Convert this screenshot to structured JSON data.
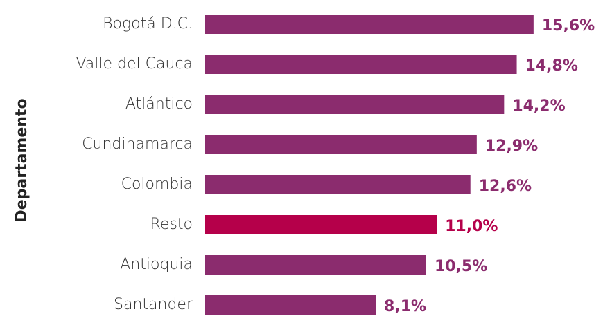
{
  "chart_data": {
    "type": "bar",
    "orientation": "horizontal",
    "y_axis_label": "Departamento",
    "categories": [
      "Bogotá D.C.",
      "Valle del Cauca",
      "Atlántico",
      "Cundinamarca",
      "Colombia",
      "Resto",
      "Antioquia",
      "Santander"
    ],
    "values": [
      15.6,
      14.8,
      14.2,
      12.9,
      12.6,
      11.0,
      10.5,
      8.1
    ],
    "value_labels": [
      "15,6%",
      "14,8%",
      "14,2%",
      "12,9%",
      "12,6%",
      "11,0%",
      "10,5%",
      "8,1%"
    ],
    "colors": [
      "#8b2c6e",
      "#8b2c6e",
      "#8b2c6e",
      "#8b2c6e",
      "#8b2c6e",
      "#b5004a",
      "#8b2c6e",
      "#8b2c6e"
    ],
    "xlim": [
      0,
      16
    ]
  }
}
